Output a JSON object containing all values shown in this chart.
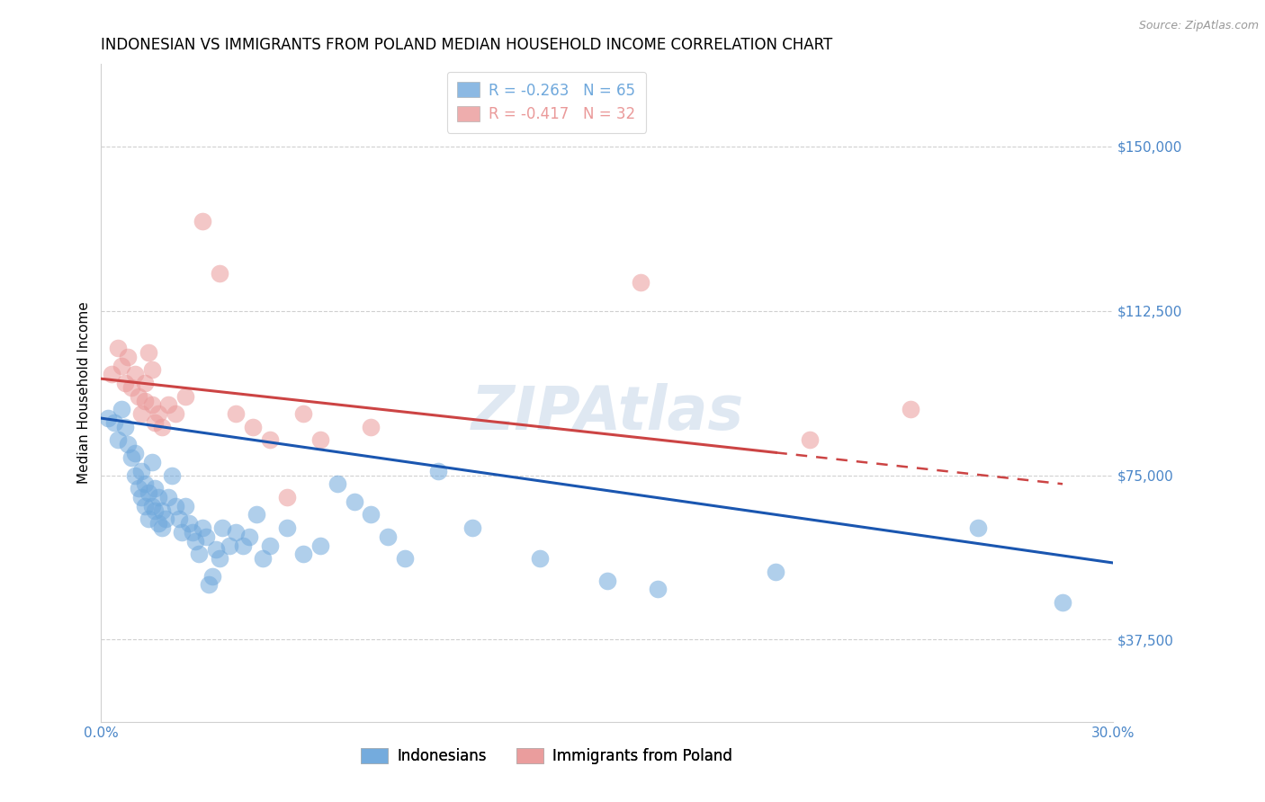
{
  "title": "INDONESIAN VS IMMIGRANTS FROM POLAND MEDIAN HOUSEHOLD INCOME CORRELATION CHART",
  "source": "Source: ZipAtlas.com",
  "ylabel": "Median Household Income",
  "xlim": [
    0.0,
    0.3
  ],
  "ylim": [
    18750,
    168750
  ],
  "yticks": [
    37500,
    75000,
    112500,
    150000
  ],
  "ytick_labels": [
    "$37,500",
    "$75,000",
    "$112,500",
    "$150,000"
  ],
  "xticks": [
    0.0,
    0.05,
    0.1,
    0.15,
    0.2,
    0.25,
    0.3
  ],
  "xtick_labels": [
    "0.0%",
    "",
    "",
    "",
    "",
    "",
    "30.0%"
  ],
  "legend_entries": [
    {
      "label": "R = -0.263   N = 65",
      "color": "#6fa8dc"
    },
    {
      "label": "R = -0.417   N = 32",
      "color": "#ea9999"
    }
  ],
  "legend_labels_bottom": [
    "Indonesians",
    "Immigrants from Poland"
  ],
  "blue_scatter": [
    [
      0.002,
      88000
    ],
    [
      0.004,
      87000
    ],
    [
      0.005,
      83000
    ],
    [
      0.006,
      90000
    ],
    [
      0.007,
      86000
    ],
    [
      0.008,
      82000
    ],
    [
      0.009,
      79000
    ],
    [
      0.01,
      75000
    ],
    [
      0.01,
      80000
    ],
    [
      0.011,
      72000
    ],
    [
      0.012,
      70000
    ],
    [
      0.012,
      76000
    ],
    [
      0.013,
      68000
    ],
    [
      0.013,
      73000
    ],
    [
      0.014,
      65000
    ],
    [
      0.014,
      71000
    ],
    [
      0.015,
      78000
    ],
    [
      0.015,
      68000
    ],
    [
      0.016,
      67000
    ],
    [
      0.016,
      72000
    ],
    [
      0.017,
      64000
    ],
    [
      0.017,
      70000
    ],
    [
      0.018,
      63000
    ],
    [
      0.018,
      67000
    ],
    [
      0.019,
      65000
    ],
    [
      0.02,
      70000
    ],
    [
      0.021,
      75000
    ],
    [
      0.022,
      68000
    ],
    [
      0.023,
      65000
    ],
    [
      0.024,
      62000
    ],
    [
      0.025,
      68000
    ],
    [
      0.026,
      64000
    ],
    [
      0.027,
      62000
    ],
    [
      0.028,
      60000
    ],
    [
      0.029,
      57000
    ],
    [
      0.03,
      63000
    ],
    [
      0.031,
      61000
    ],
    [
      0.032,
      50000
    ],
    [
      0.033,
      52000
    ],
    [
      0.034,
      58000
    ],
    [
      0.035,
      56000
    ],
    [
      0.036,
      63000
    ],
    [
      0.038,
      59000
    ],
    [
      0.04,
      62000
    ],
    [
      0.042,
      59000
    ],
    [
      0.044,
      61000
    ],
    [
      0.046,
      66000
    ],
    [
      0.048,
      56000
    ],
    [
      0.05,
      59000
    ],
    [
      0.055,
      63000
    ],
    [
      0.06,
      57000
    ],
    [
      0.065,
      59000
    ],
    [
      0.07,
      73000
    ],
    [
      0.075,
      69000
    ],
    [
      0.08,
      66000
    ],
    [
      0.085,
      61000
    ],
    [
      0.09,
      56000
    ],
    [
      0.1,
      76000
    ],
    [
      0.11,
      63000
    ],
    [
      0.13,
      56000
    ],
    [
      0.15,
      51000
    ],
    [
      0.165,
      49000
    ],
    [
      0.2,
      53000
    ],
    [
      0.26,
      63000
    ],
    [
      0.285,
      46000
    ]
  ],
  "pink_scatter": [
    [
      0.003,
      98000
    ],
    [
      0.005,
      104000
    ],
    [
      0.006,
      100000
    ],
    [
      0.007,
      96000
    ],
    [
      0.008,
      102000
    ],
    [
      0.009,
      95000
    ],
    [
      0.01,
      98000
    ],
    [
      0.011,
      93000
    ],
    [
      0.012,
      89000
    ],
    [
      0.013,
      96000
    ],
    [
      0.013,
      92000
    ],
    [
      0.014,
      103000
    ],
    [
      0.015,
      99000
    ],
    [
      0.015,
      91000
    ],
    [
      0.016,
      87000
    ],
    [
      0.017,
      89000
    ],
    [
      0.018,
      86000
    ],
    [
      0.02,
      91000
    ],
    [
      0.022,
      89000
    ],
    [
      0.025,
      93000
    ],
    [
      0.03,
      133000
    ],
    [
      0.035,
      121000
    ],
    [
      0.04,
      89000
    ],
    [
      0.045,
      86000
    ],
    [
      0.05,
      83000
    ],
    [
      0.055,
      70000
    ],
    [
      0.06,
      89000
    ],
    [
      0.065,
      83000
    ],
    [
      0.08,
      86000
    ],
    [
      0.16,
      119000
    ],
    [
      0.21,
      83000
    ],
    [
      0.24,
      90000
    ]
  ],
  "blue_line": {
    "x0": 0.0,
    "y0": 88000,
    "x1": 0.3,
    "y1": 55000
  },
  "pink_line": {
    "x0": 0.0,
    "y0": 97000,
    "x1": 0.285,
    "y1": 73000
  },
  "pink_line_solid_end": 0.2,
  "axis_color": "#4a86c8",
  "scatter_blue_color": "#6fa8dc",
  "scatter_pink_color": "#ea9999",
  "line_blue_color": "#1a56b0",
  "line_pink_color": "#cc4444",
  "title_fontsize": 12,
  "source_fontsize": 9,
  "ylabel_fontsize": 11,
  "tick_fontsize": 11,
  "watermark_text": "ZIPAtlas",
  "background_color": "#ffffff"
}
